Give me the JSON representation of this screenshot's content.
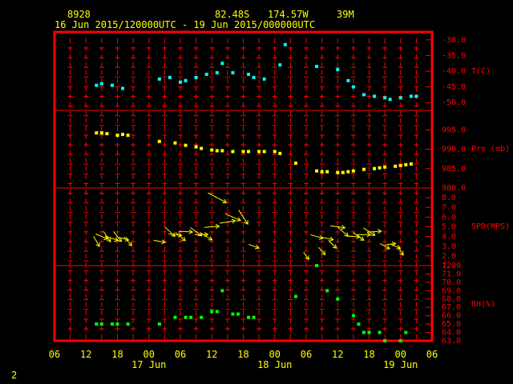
{
  "header": {
    "station": "8928",
    "lat": "82.48S",
    "lon": "174.57W",
    "elev": "39M",
    "period": "16 Jun 2015/120000UTC - 19 Jun 2015/000000UTC"
  },
  "page_number": "2",
  "colors": {
    "frame": "#ff0000",
    "text": "#ffff00",
    "temperature": "#00ffff",
    "pressure": "#ffff00",
    "wind": "#ffff00",
    "humidity": "#00ff00",
    "tick": "#ff0000"
  },
  "chart_data": [
    {
      "type": "scatter",
      "panel": "temperature",
      "ylabel": "T(C)",
      "ylim": [
        -52.5,
        -27.5
      ],
      "ticks": [
        "-30.0",
        "-35.0",
        "-40.0",
        "-45.0",
        "-50.0"
      ],
      "tick_values": [
        -30,
        -35,
        -40,
        -45,
        -50
      ],
      "x_hours": [
        14,
        15,
        17,
        19,
        26,
        28,
        30,
        31,
        33,
        35,
        37,
        38,
        40,
        43,
        44,
        46,
        49,
        50,
        56,
        60,
        62,
        63,
        65,
        67,
        69,
        70,
        72,
        74,
        75
      ],
      "values": [
        -44.5,
        -44.0,
        -44.5,
        -45.5,
        -42.5,
        -42.0,
        -43.5,
        -43.0,
        -42.0,
        -41.0,
        -40.5,
        -37.5,
        -40.5,
        -41.0,
        -42.0,
        -42.5,
        -38.0,
        -31.5,
        -38.5,
        -39.5,
        -43.0,
        -45.0,
        -47.5,
        -48.0,
        -48.5,
        -49.0,
        -48.5,
        -48.0,
        -48.0
      ]
    },
    {
      "type": "scatter",
      "panel": "pressure",
      "ylabel": "Pre (mb)",
      "ylim": [
        980.0,
        1000.0
      ],
      "ticks": [
        "995.0",
        "990.0",
        "985.0",
        "980.0"
      ],
      "tick_values": [
        995,
        990,
        985,
        980
      ],
      "x_hours": [
        14,
        15,
        16,
        18,
        19,
        20,
        26,
        29,
        31,
        33,
        34,
        36,
        37,
        38,
        40,
        42,
        43,
        45,
        46,
        48,
        49,
        52,
        56,
        57,
        58,
        60,
        61,
        62,
        63,
        65,
        67,
        68,
        69,
        71,
        72,
        73,
        74
      ],
      "values": [
        994.2,
        994.2,
        994.0,
        993.6,
        993.8,
        993.6,
        992.0,
        991.6,
        991.0,
        990.6,
        990.2,
        989.8,
        989.6,
        989.6,
        989.4,
        989.4,
        989.4,
        989.4,
        989.4,
        989.4,
        988.9,
        986.4,
        984.4,
        984.2,
        984.2,
        984.0,
        984.0,
        984.2,
        984.4,
        984.8,
        985.0,
        985.2,
        985.4,
        985.6,
        985.8,
        986.0,
        986.2
      ]
    },
    {
      "type": "scatter",
      "panel": "wind",
      "ylabel": "SPD(MPS)",
      "ylim": [
        1.0,
        9.0
      ],
      "ticks": [
        "8.0",
        "7.0",
        "6.0",
        "5.0",
        "4.0",
        "3.0",
        "2.0",
        "1.0"
      ],
      "tick_values": [
        8,
        7,
        6,
        5,
        4,
        3,
        2,
        1
      ],
      "note": "wind arrows; length ∝ speed",
      "x_hours": [
        14,
        15,
        16,
        17,
        18,
        19,
        20,
        26,
        28,
        29,
        30,
        31,
        33,
        34,
        35,
        36,
        37,
        39,
        40,
        42,
        44,
        54,
        56,
        57,
        58,
        59,
        60,
        61,
        63,
        64,
        65,
        66,
        67,
        69,
        70,
        71,
        72
      ],
      "values": [
        3.5,
        4.0,
        4.0,
        3.8,
        4.0,
        3.8,
        3.5,
        3.5,
        4.5,
        4.2,
        4.0,
        4.5,
        4.5,
        4.2,
        4.0,
        5.0,
        8.0,
        5.5,
        6.0,
        6.0,
        3.0,
        2.0,
        4.0,
        2.5,
        3.8,
        3.2,
        5.0,
        4.5,
        4.0,
        4.0,
        4.2,
        4.5,
        4.5,
        3.0,
        3.2,
        3.0,
        2.5
      ]
    },
    {
      "type": "scatter",
      "panel": "humidity",
      "ylabel": "RH(%)",
      "ylim": [
        63.0,
        72.0
      ],
      "ticks": [
        "72.0",
        "71.0",
        "70.0",
        "69.0",
        "68.0",
        "67.0",
        "66.0",
        "65.0",
        "64.0",
        "63.0"
      ],
      "tick_values": [
        72,
        71,
        70,
        69,
        68,
        67,
        66,
        65,
        64,
        63
      ],
      "x_hours": [
        14,
        15,
        17,
        18,
        20,
        26,
        29,
        31,
        32,
        34,
        36,
        37,
        38,
        40,
        41,
        43,
        44,
        52,
        56,
        58,
        60,
        63,
        64,
        65,
        66,
        68,
        69,
        72,
        73
      ],
      "values": [
        65.0,
        65.0,
        65.0,
        65.0,
        65.0,
        65.0,
        65.8,
        65.8,
        65.8,
        65.8,
        66.5,
        66.5,
        69.0,
        66.2,
        66.2,
        65.8,
        65.8,
        68.3,
        72.0,
        69.0,
        68.0,
        66.0,
        65.0,
        64.0,
        64.0,
        64.0,
        63.0,
        63.0,
        64.0
      ]
    }
  ],
  "x_axis": {
    "hour_labels": [
      "06",
      "12",
      "18",
      "00",
      "06",
      "12",
      "18",
      "00",
      "06",
      "12",
      "18",
      "00",
      "06"
    ],
    "hour_values": [
      6,
      12,
      18,
      24,
      30,
      36,
      42,
      48,
      54,
      60,
      66,
      72,
      78
    ],
    "date_labels": [
      "17 Jun",
      "18 Jun",
      "19 Jun"
    ],
    "date_hours": [
      24,
      48,
      72
    ],
    "xlim": [
      6,
      78
    ]
  }
}
